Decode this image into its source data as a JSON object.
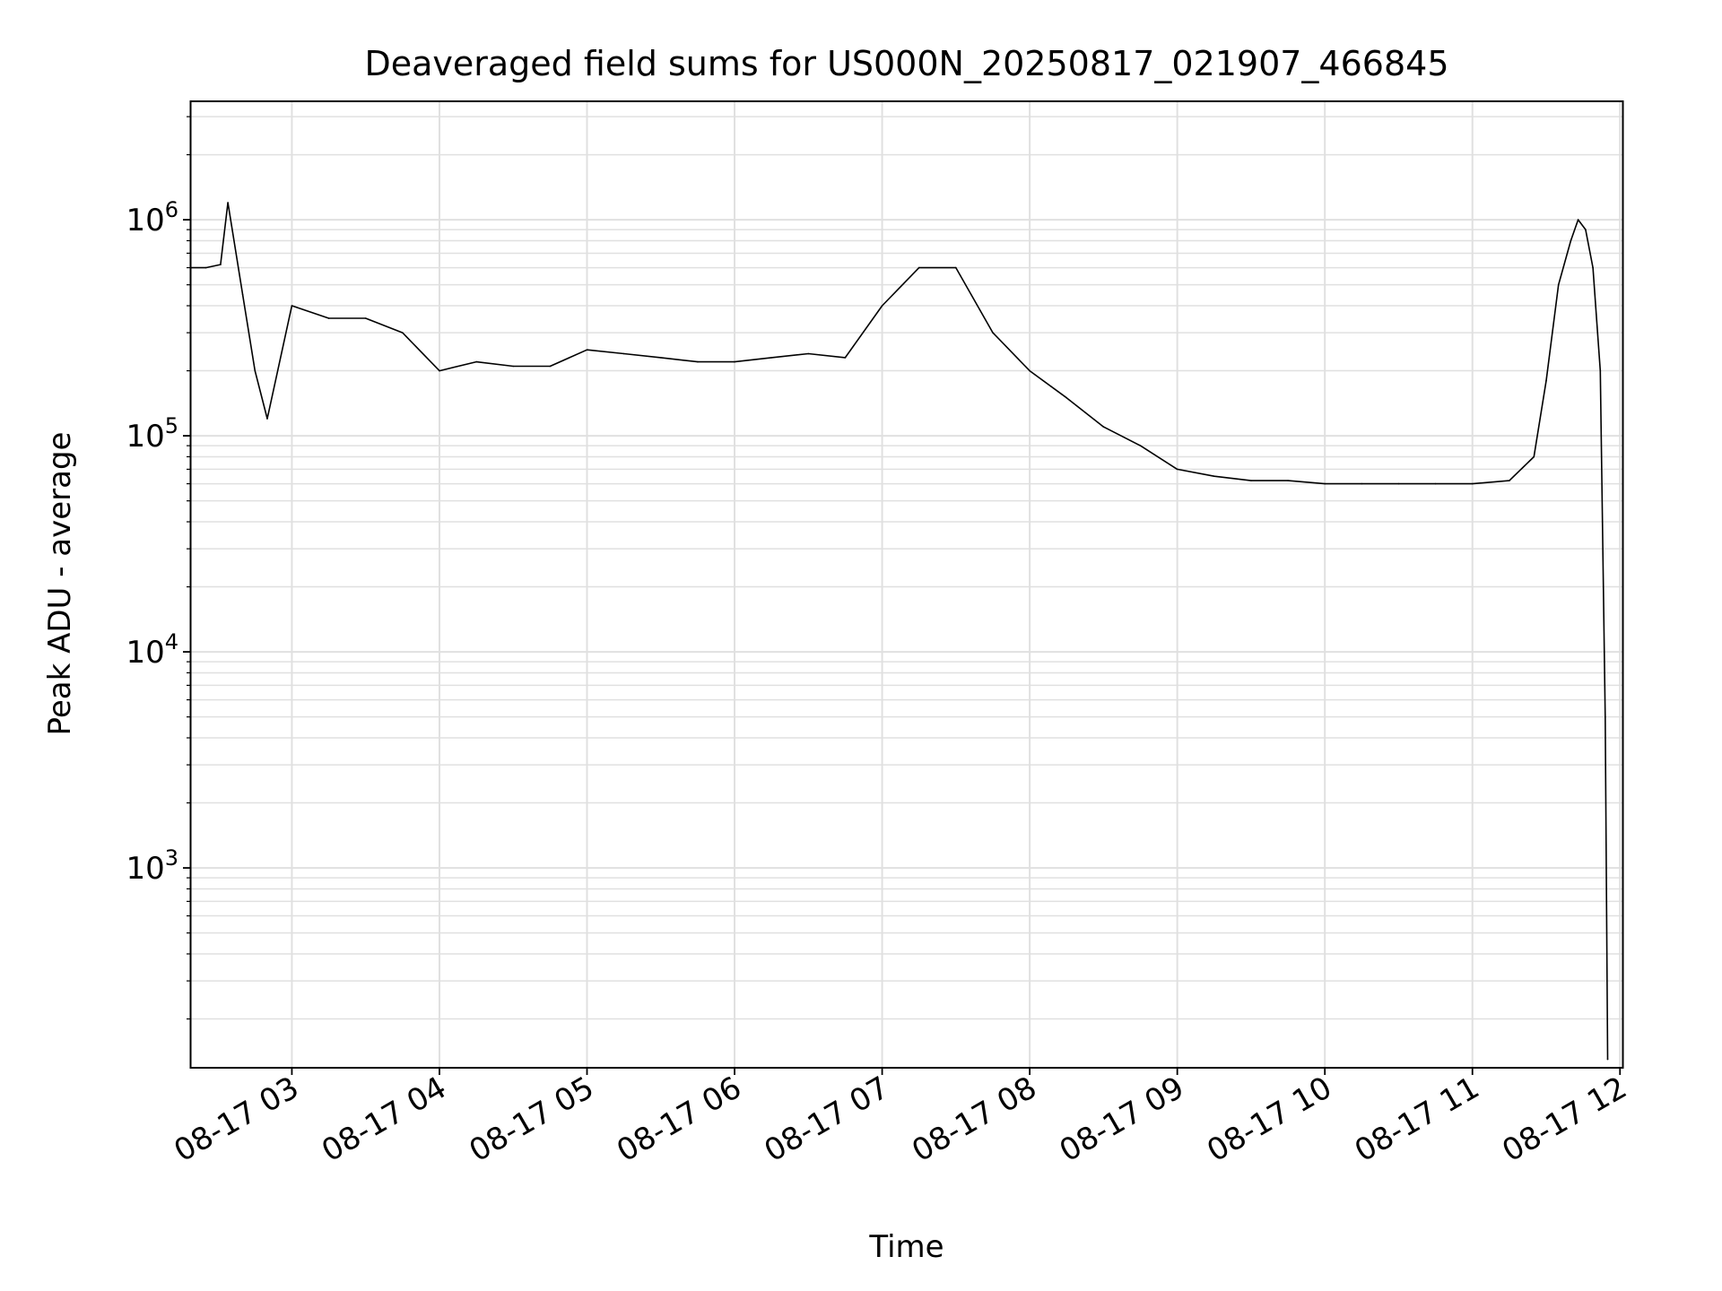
{
  "chart_data": {
    "type": "line",
    "title": "Deaveraged field sums for US000N_20250817_021907_466845",
    "xlabel": "Time",
    "ylabel": "Peak ADU - average",
    "x_scale": "time",
    "y_scale": "log",
    "xlim": [
      "2025-08-17 02:19",
      "2025-08-17 12:01"
    ],
    "ylim": [
      120,
      3500000
    ],
    "x_ticks": [
      {
        "t": "2025-08-17 03:00",
        "label": "08-17 03"
      },
      {
        "t": "2025-08-17 04:00",
        "label": "08-17 04"
      },
      {
        "t": "2025-08-17 05:00",
        "label": "08-17 05"
      },
      {
        "t": "2025-08-17 06:00",
        "label": "08-17 06"
      },
      {
        "t": "2025-08-17 07:00",
        "label": "08-17 07"
      },
      {
        "t": "2025-08-17 08:00",
        "label": "08-17 08"
      },
      {
        "t": "2025-08-17 09:00",
        "label": "08-17 09"
      },
      {
        "t": "2025-08-17 10:00",
        "label": "08-17 10"
      },
      {
        "t": "2025-08-17 11:00",
        "label": "08-17 11"
      },
      {
        "t": "2025-08-17 12:00",
        "label": "08-17 12"
      }
    ],
    "y_ticks": [
      {
        "value": 1000,
        "base": "10",
        "exp": "3"
      },
      {
        "value": 10000,
        "base": "10",
        "exp": "4"
      },
      {
        "value": 100000,
        "base": "10",
        "exp": "5"
      },
      {
        "value": 1000000,
        "base": "10",
        "exp": "6"
      }
    ],
    "grid": true,
    "line_color": "#000000",
    "grid_color": "#e0e0e0",
    "series": [
      {
        "name": "",
        "x": [
          "2025-08-17 02:19",
          "2025-08-17 02:25",
          "2025-08-17 02:31",
          "2025-08-17 02:34",
          "2025-08-17 02:40",
          "2025-08-17 02:45",
          "2025-08-17 02:50",
          "2025-08-17 03:00",
          "2025-08-17 03:15",
          "2025-08-17 03:30",
          "2025-08-17 03:45",
          "2025-08-17 04:00",
          "2025-08-17 04:15",
          "2025-08-17 04:30",
          "2025-08-17 04:45",
          "2025-08-17 05:00",
          "2025-08-17 05:15",
          "2025-08-17 05:30",
          "2025-08-17 05:45",
          "2025-08-17 06:00",
          "2025-08-17 06:15",
          "2025-08-17 06:30",
          "2025-08-17 06:45",
          "2025-08-17 07:00",
          "2025-08-17 07:15",
          "2025-08-17 07:30",
          "2025-08-17 07:45",
          "2025-08-17 08:00",
          "2025-08-17 08:15",
          "2025-08-17 08:30",
          "2025-08-17 08:45",
          "2025-08-17 09:00",
          "2025-08-17 09:15",
          "2025-08-17 09:30",
          "2025-08-17 09:45",
          "2025-08-17 10:00",
          "2025-08-17 10:15",
          "2025-08-17 10:30",
          "2025-08-17 10:45",
          "2025-08-17 11:00",
          "2025-08-17 11:15",
          "2025-08-17 11:25",
          "2025-08-17 11:30",
          "2025-08-17 11:35",
          "2025-08-17 11:40",
          "2025-08-17 11:43",
          "2025-08-17 11:46",
          "2025-08-17 11:49",
          "2025-08-17 11:52",
          "2025-08-17 11:54",
          "2025-08-17 11:55"
        ],
        "y": [
          600000,
          600000,
          620000,
          1200000,
          450000,
          200000,
          120000,
          400000,
          350000,
          350000,
          300000,
          200000,
          220000,
          210000,
          210000,
          250000,
          240000,
          230000,
          220000,
          220000,
          230000,
          240000,
          230000,
          400000,
          600000,
          600000,
          300000,
          200000,
          150000,
          110000,
          90000,
          70000,
          65000,
          62000,
          62000,
          60000,
          60000,
          60000,
          60000,
          60000,
          62000,
          80000,
          180000,
          500000,
          800000,
          1000000,
          900000,
          600000,
          200000,
          5000,
          130
        ]
      }
    ]
  }
}
